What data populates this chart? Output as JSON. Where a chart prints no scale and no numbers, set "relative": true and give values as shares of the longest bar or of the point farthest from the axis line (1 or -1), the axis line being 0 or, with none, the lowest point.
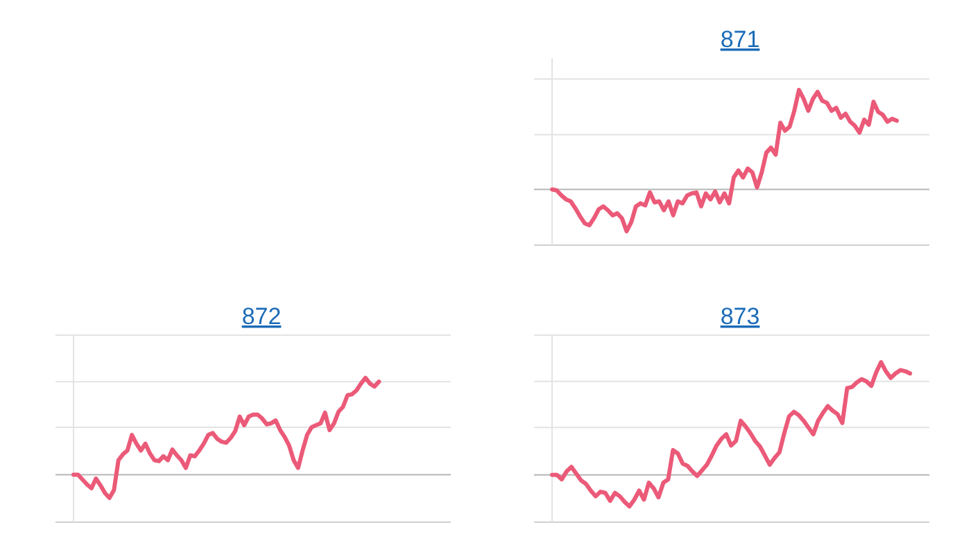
{
  "chart_data": [
    {
      "type": "line",
      "title": "871",
      "relative": true,
      "ref_lines": [
        {
          "axis": "y",
          "value": -0.56,
          "color": "#d0d0d0"
        },
        {
          "axis": "y",
          "value": 0.55,
          "color": "#e3e3e3"
        },
        {
          "axis": "y",
          "value": 1.11,
          "color": "#e3e3e3"
        }
      ],
      "categories": [
        null,
        null,
        null,
        null,
        null,
        null,
        null,
        null,
        null,
        null,
        null,
        null,
        null,
        null,
        null,
        null,
        null,
        null,
        null,
        null,
        null,
        null,
        null,
        null,
        null,
        null,
        null,
        null,
        null,
        null,
        null,
        null,
        null,
        null,
        null,
        null,
        null,
        null,
        null,
        null,
        null,
        null,
        null,
        null,
        null,
        null,
        null,
        null,
        null,
        null,
        null,
        null,
        null,
        null,
        null,
        null,
        null,
        null,
        null,
        null,
        null,
        null,
        null,
        null,
        null,
        null,
        null,
        null,
        null,
        null,
        null,
        null,
        null,
        null,
        null,
        null,
        null,
        null,
        null,
        null,
        null,
        null
      ],
      "series": [
        {
          "color": "#eb5a78",
          "values": [
            0,
            -0.01,
            -0.06,
            -0.1,
            -0.12,
            -0.19,
            -0.27,
            -0.34,
            -0.36,
            -0.29,
            -0.2,
            -0.17,
            -0.21,
            -0.26,
            -0.24,
            -0.29,
            -0.42,
            -0.33,
            -0.17,
            -0.14,
            -0.16,
            -0.03,
            -0.13,
            -0.12,
            -0.21,
            -0.12,
            -0.26,
            -0.12,
            -0.14,
            -0.06,
            -0.04,
            -0.03,
            -0.17,
            -0.04,
            -0.1,
            -0.02,
            -0.13,
            -0.04,
            -0.14,
            0.12,
            0.19,
            0.12,
            0.21,
            0.17,
            0.02,
            0.17,
            0.37,
            0.42,
            0.35,
            0.67,
            0.59,
            0.63,
            0.79,
            1,
            0.91,
            0.79,
            0.91,
            0.98,
            0.89,
            0.87,
            0.79,
            0.82,
            0.72,
            0.76,
            0.68,
            0.64,
            0.57,
            0.7,
            0.65,
            0.88,
            0.78,
            0.75,
            0.68,
            0.71,
            0.69,
            null,
            null,
            null,
            null,
            null,
            null,
            null
          ]
        }
      ]
    },
    {
      "type": "line",
      "title": "872",
      "relative": true,
      "ref_lines": [
        {
          "axis": "y",
          "value": -0.49,
          "color": "#d0d0d0"
        },
        {
          "axis": "y",
          "value": 0.49,
          "color": "#e3e3e3"
        },
        {
          "axis": "y",
          "value": 0.96,
          "color": "#e3e3e3"
        },
        {
          "axis": "y",
          "value": 1.44,
          "color": "#e3e3e3"
        }
      ],
      "categories": [
        null,
        null,
        null,
        null,
        null,
        null,
        null,
        null,
        null,
        null,
        null,
        null,
        null,
        null,
        null,
        null,
        null,
        null,
        null,
        null,
        null,
        null,
        null,
        null,
        null,
        null,
        null,
        null,
        null,
        null,
        null,
        null,
        null,
        null,
        null,
        null,
        null,
        null,
        null,
        null,
        null,
        null,
        null,
        null,
        null,
        null,
        null,
        null,
        null,
        null,
        null,
        null,
        null,
        null,
        null,
        null,
        null,
        null,
        null,
        null,
        null,
        null,
        null,
        null,
        null,
        null,
        null,
        null,
        null,
        null,
        null,
        null,
        null,
        null,
        null,
        null,
        null,
        null,
        null,
        null,
        null,
        null,
        null,
        null,
        null
      ],
      "series": [
        {
          "color": "#eb5a78",
          "values": [
            0,
            0,
            -0.05,
            -0.1,
            -0.14,
            -0.04,
            -0.11,
            -0.19,
            -0.24,
            -0.16,
            0.15,
            0.21,
            0.25,
            0.41,
            0.32,
            0.25,
            0.32,
            0.22,
            0.15,
            0.14,
            0.19,
            0.15,
            0.26,
            0.2,
            0.15,
            0.07,
            0.2,
            0.19,
            0.25,
            0.32,
            0.41,
            0.43,
            0.37,
            0.34,
            0.33,
            0.38,
            0.45,
            0.6,
            0.51,
            0.6,
            0.62,
            0.62,
            0.58,
            0.52,
            0.53,
            0.56,
            0.46,
            0.39,
            0.3,
            0.15,
            0.07,
            0.25,
            0.41,
            0.49,
            0.51,
            0.53,
            0.64,
            0.46,
            0.53,
            0.65,
            0.7,
            0.82,
            0.83,
            0.87,
            0.94,
            1,
            0.94,
            0.91,
            0.96,
            null,
            null,
            null,
            null,
            null,
            null,
            null,
            null,
            null,
            null,
            null,
            null,
            null,
            null,
            null,
            null
          ]
        }
      ]
    },
    {
      "type": "line",
      "title": "873",
      "relative": true,
      "ref_lines": [
        {
          "axis": "y",
          "value": -0.42,
          "color": "#d0d0d0"
        },
        {
          "axis": "y",
          "value": 0.42,
          "color": "#e3e3e3"
        },
        {
          "axis": "y",
          "value": 0.83,
          "color": "#e3e3e3"
        },
        {
          "axis": "y",
          "value": 1.24,
          "color": "#e3e3e3"
        }
      ],
      "categories": [
        null,
        null,
        null,
        null,
        null,
        null,
        null,
        null,
        null,
        null,
        null,
        null,
        null,
        null,
        null,
        null,
        null,
        null,
        null,
        null,
        null,
        null,
        null,
        null,
        null,
        null,
        null,
        null,
        null,
        null,
        null,
        null,
        null,
        null,
        null,
        null,
        null,
        null,
        null,
        null,
        null,
        null,
        null,
        null,
        null,
        null,
        null,
        null,
        null,
        null,
        null,
        null,
        null,
        null,
        null,
        null,
        null,
        null,
        null,
        null,
        null,
        null,
        null,
        null,
        null,
        null,
        null,
        null,
        null,
        null,
        null,
        null,
        null,
        null,
        null,
        null,
        null,
        null,
        null
      ],
      "series": [
        {
          "color": "#eb5a78",
          "values": [
            0,
            0,
            -0.04,
            0.03,
            0.07,
            0.01,
            -0.05,
            -0.08,
            -0.14,
            -0.19,
            -0.15,
            -0.16,
            -0.23,
            -0.16,
            -0.19,
            -0.24,
            -0.28,
            -0.22,
            -0.14,
            -0.22,
            -0.07,
            -0.12,
            -0.2,
            -0.07,
            -0.04,
            0.22,
            0.19,
            0.1,
            0.08,
            0.03,
            -0.01,
            0.04,
            0.09,
            0.17,
            0.26,
            0.32,
            0.36,
            0.26,
            0.3,
            0.48,
            0.43,
            0.37,
            0.3,
            0.25,
            0.17,
            0.09,
            0.15,
            0.2,
            0.37,
            0.52,
            0.56,
            0.53,
            0.48,
            0.42,
            0.36,
            0.48,
            0.55,
            0.61,
            0.57,
            0.54,
            0.46,
            0.77,
            0.78,
            0.82,
            0.85,
            0.83,
            0.79,
            0.91,
            1,
            0.92,
            0.86,
            0.9,
            0.93,
            0.92,
            0.9,
            null,
            null,
            null,
            null
          ]
        }
      ]
    }
  ]
}
